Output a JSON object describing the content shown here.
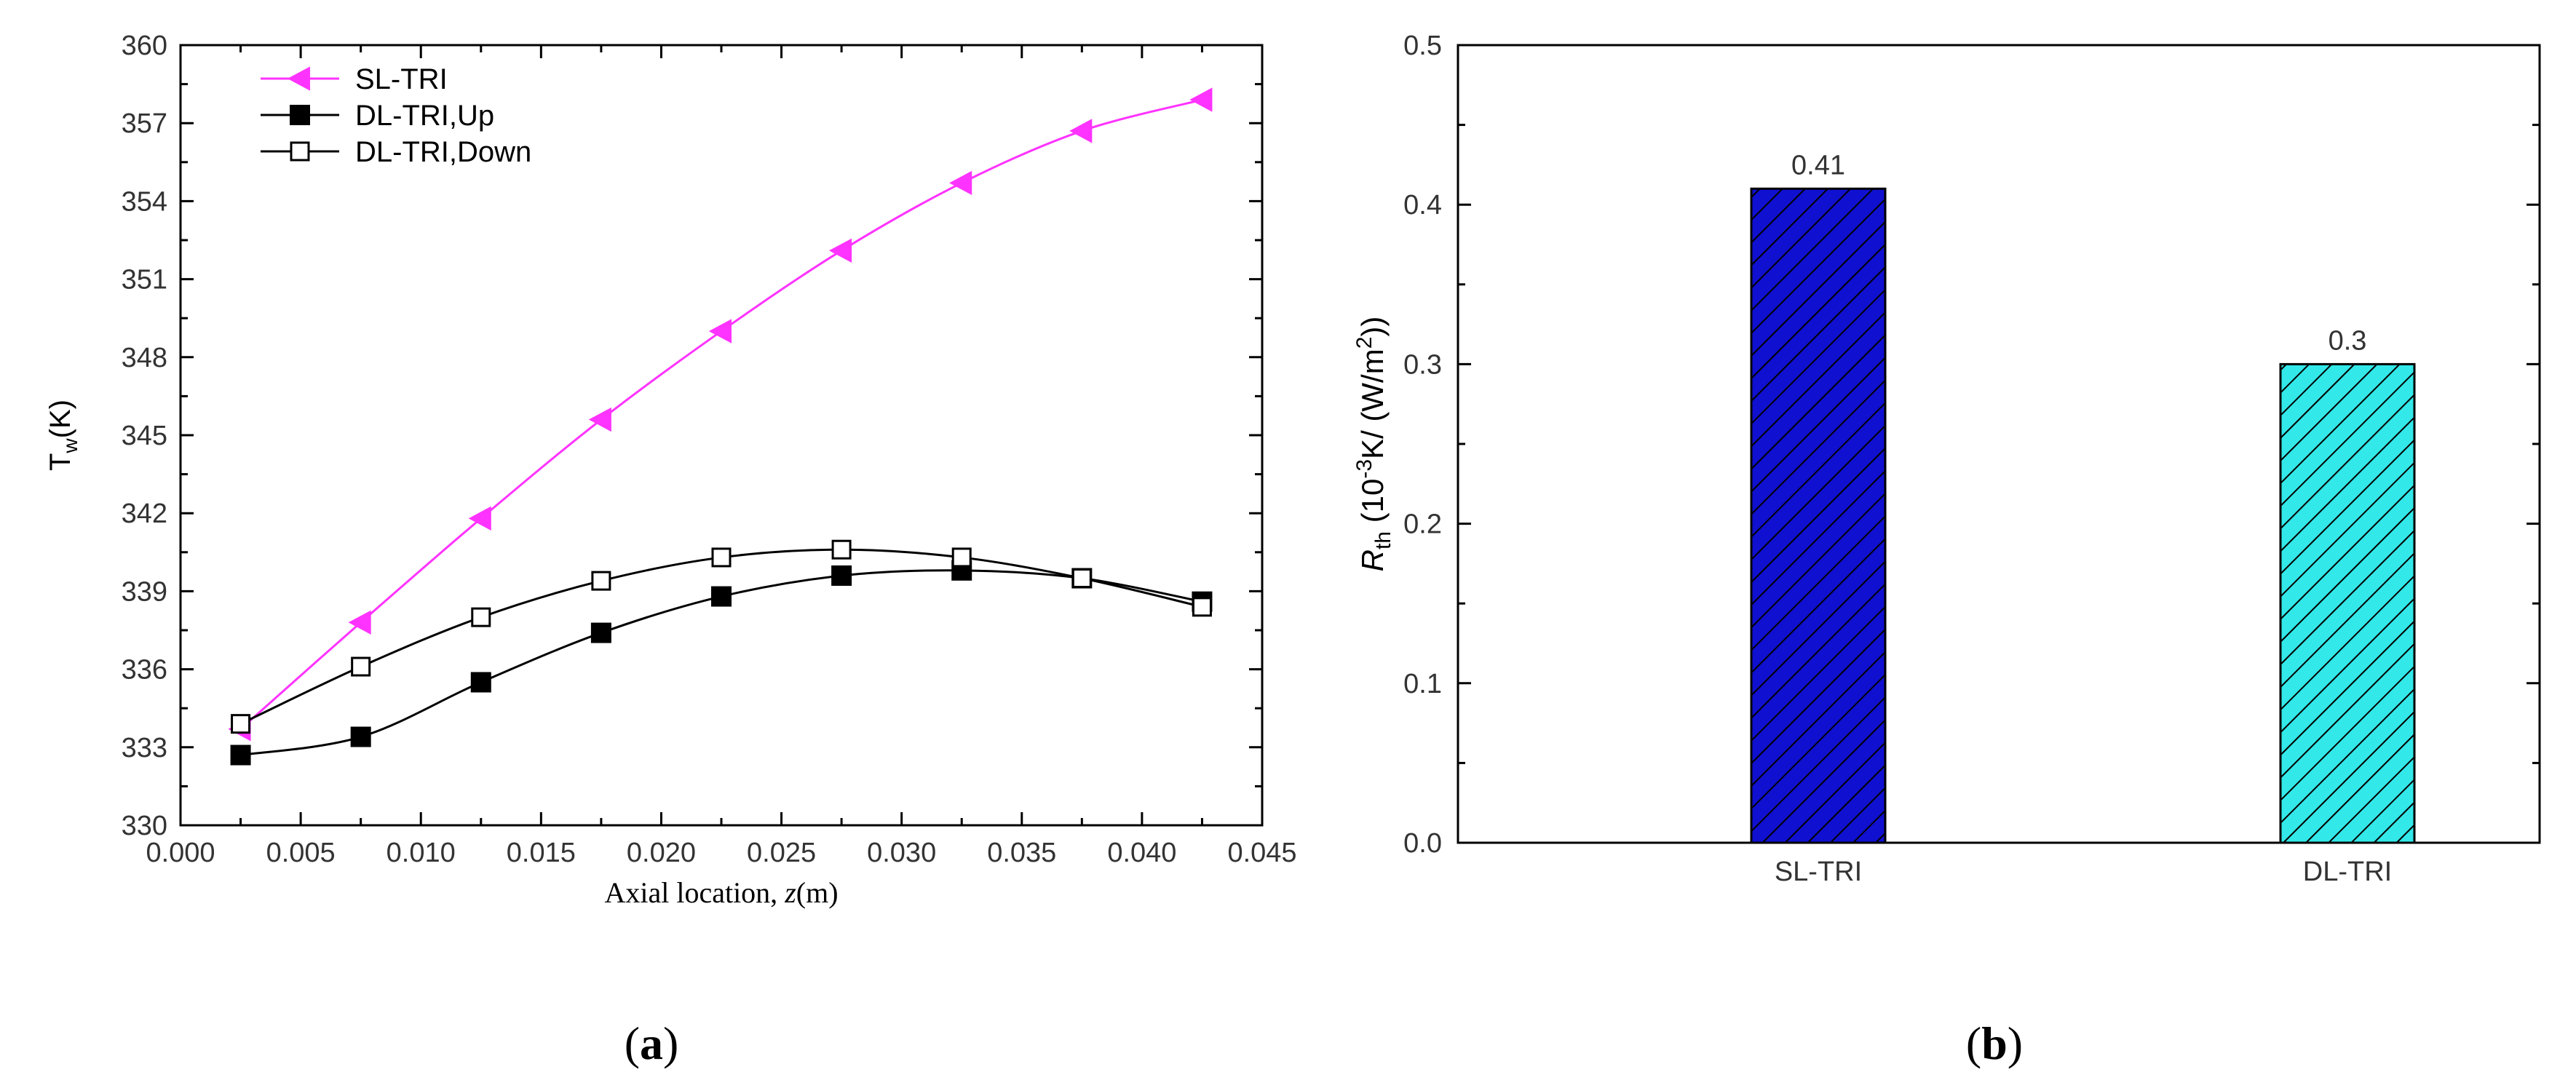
{
  "panel_labels": [
    "(a)",
    "(b)"
  ],
  "chart_data": [
    {
      "type": "line",
      "xlabel": "Axial location, z(m)",
      "ylabel": "Tw(K)",
      "xlim": [
        0.0,
        0.045
      ],
      "ylim": [
        330,
        360
      ],
      "x_ticks": [
        "0.000",
        "0.005",
        "0.010",
        "0.015",
        "0.020",
        "0.025",
        "0.030",
        "0.035",
        "0.040",
        "0.045"
      ],
      "y_ticks": [
        "330",
        "333",
        "336",
        "339",
        "342",
        "345",
        "348",
        "351",
        "354",
        "357",
        "360"
      ],
      "legend_position": "top-left",
      "x": [
        0.0025,
        0.0075,
        0.0125,
        0.0175,
        0.0225,
        0.0275,
        0.0325,
        0.0375,
        0.0425
      ],
      "series": [
        {
          "name": "SL-TRI",
          "marker": "left-triangle",
          "color": "#ff33ff",
          "values": [
            333.7,
            337.8,
            341.8,
            345.6,
            349.0,
            352.1,
            354.7,
            356.7,
            357.9
          ]
        },
        {
          "name": "DL-TRI,Up",
          "marker": "filled-square",
          "color": "#000000",
          "values": [
            332.7,
            333.4,
            335.5,
            337.4,
            338.8,
            339.6,
            339.8,
            339.5,
            338.6
          ]
        },
        {
          "name": "DL-TRI,Down",
          "marker": "open-square",
          "color": "#000000",
          "values": [
            333.9,
            336.1,
            338.0,
            339.4,
            340.3,
            340.6,
            340.3,
            339.5,
            338.4
          ]
        }
      ]
    },
    {
      "type": "bar",
      "ylabel": "Rth (10⁻³K/(W/m²))",
      "ylim": [
        0.0,
        0.5
      ],
      "y_ticks": [
        "0.0",
        "0.1",
        "0.2",
        "0.3",
        "0.4",
        "0.5"
      ],
      "categories": [
        "SL-TRI",
        "DL-TRI"
      ],
      "values": [
        0.41,
        0.3
      ],
      "data_labels": [
        "0.41",
        "0.3"
      ],
      "colors": [
        "#1010d0",
        "#33e8e8"
      ],
      "hatch": "diagonal"
    }
  ]
}
